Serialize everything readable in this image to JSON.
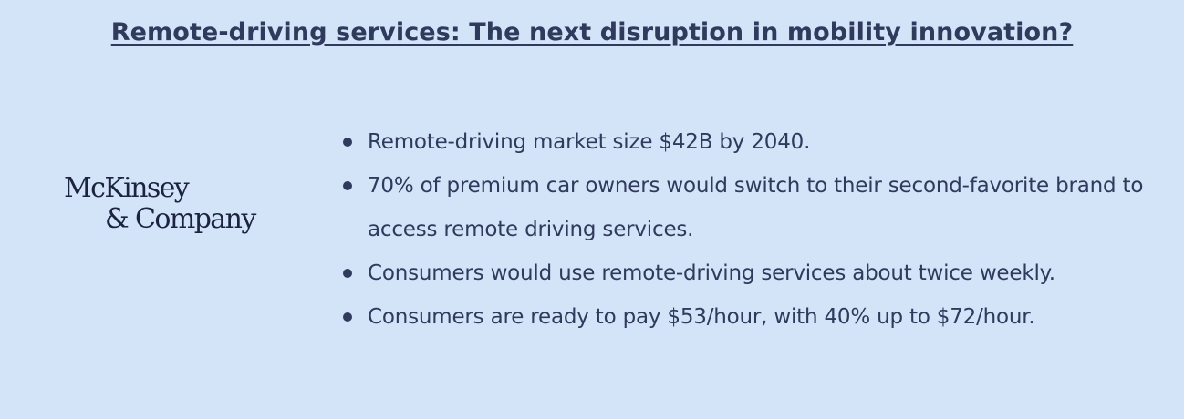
{
  "title": "Remote-driving services: The next disruption in mobility innovation?",
  "logo": {
    "line1": "McKinsey",
    "line2": "& Company"
  },
  "bullets": [
    "Remote-driving market size $42B by 2040.",
    "70% of premium car owners would switch to their second-favorite brand to access remote driving services.",
    "Consumers would use remote-driving services about twice weekly.",
    "Consumers are ready to pay $53/hour, with 40% up to $72/hour."
  ],
  "colors": {
    "background": "#d3e3f8",
    "text": "#2f3a5c",
    "logo": "#1b2340"
  }
}
